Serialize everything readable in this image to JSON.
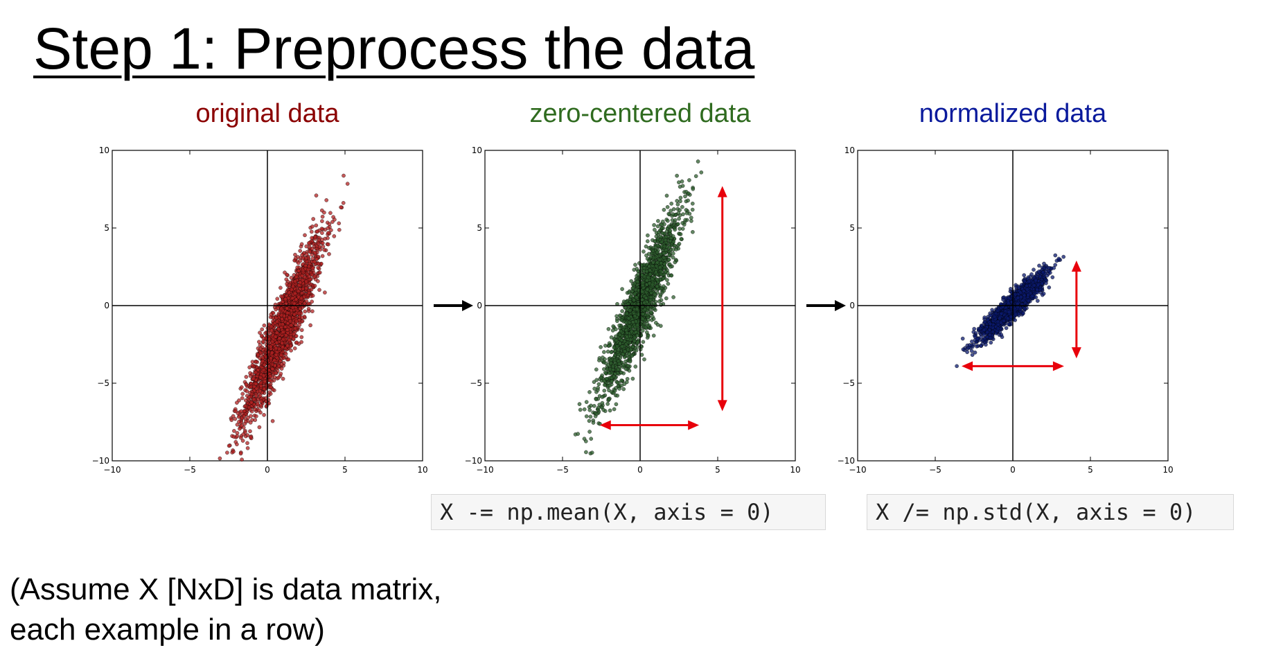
{
  "slide": {
    "title": "Step 1: Preprocess the data",
    "note_lines": [
      "(Assume X [NxD] is data matrix,",
      "each example in a row)"
    ],
    "code": [
      "X -= np.mean(X, axis = 0)",
      "X /= np.std(X, axis = 0)"
    ],
    "flow_arrow_color": "#000000",
    "annotation_arrow_color": "#e8000b"
  },
  "chart_data": [
    {
      "type": "scatter",
      "title": "original data",
      "title_color": "#8b0000",
      "point_color": "#b22222",
      "xlim": [
        -10,
        10
      ],
      "ylim": [
        -10,
        10
      ],
      "xticks": [
        -10,
        -5,
        0,
        5,
        10
      ],
      "yticks": [
        -10,
        -5,
        0,
        5,
        10
      ],
      "grid": false,
      "axis_lines_at_zero": true,
      "distribution": {
        "mean": [
          1.0,
          -1.5
        ],
        "std": [
          1.3,
          3.0
        ],
        "correlation": 0.92,
        "n_points": 1800
      },
      "annotations": []
    },
    {
      "type": "scatter",
      "title": "zero-centered data",
      "title_color": "#2f6b1f",
      "point_color": "#2e5e2e",
      "xlim": [
        -10,
        10
      ],
      "ylim": [
        -10,
        10
      ],
      "xticks": [
        -10,
        -5,
        0,
        5,
        10
      ],
      "yticks": [
        -10,
        -5,
        0,
        5,
        10
      ],
      "grid": false,
      "axis_lines_at_zero": true,
      "distribution": {
        "mean": [
          0,
          0
        ],
        "std": [
          1.3,
          3.0
        ],
        "correlation": 0.92,
        "n_points": 1800
      },
      "annotations": [
        {
          "kind": "double-arrow",
          "from": [
            5.3,
            7.7
          ],
          "to": [
            5.3,
            -6.8
          ]
        },
        {
          "kind": "double-arrow",
          "from": [
            -2.6,
            -7.7
          ],
          "to": [
            3.8,
            -7.7
          ]
        }
      ]
    },
    {
      "type": "scatter",
      "title": "normalized data",
      "title_color": "#0a1a9c",
      "point_color": "#0b1a6e",
      "xlim": [
        -10,
        10
      ],
      "ylim": [
        -10,
        10
      ],
      "xticks": [
        -10,
        -5,
        0,
        5,
        10
      ],
      "yticks": [
        -10,
        -5,
        0,
        5,
        10
      ],
      "grid": false,
      "axis_lines_at_zero": true,
      "distribution": {
        "mean": [
          0,
          0
        ],
        "std": [
          1.0,
          1.0
        ],
        "correlation": 0.92,
        "n_points": 1800
      },
      "annotations": [
        {
          "kind": "double-arrow",
          "from": [
            4.1,
            2.9
          ],
          "to": [
            4.1,
            -3.4
          ]
        },
        {
          "kind": "double-arrow",
          "from": [
            -3.3,
            -3.9
          ],
          "to": [
            3.3,
            -3.9
          ]
        }
      ]
    }
  ]
}
